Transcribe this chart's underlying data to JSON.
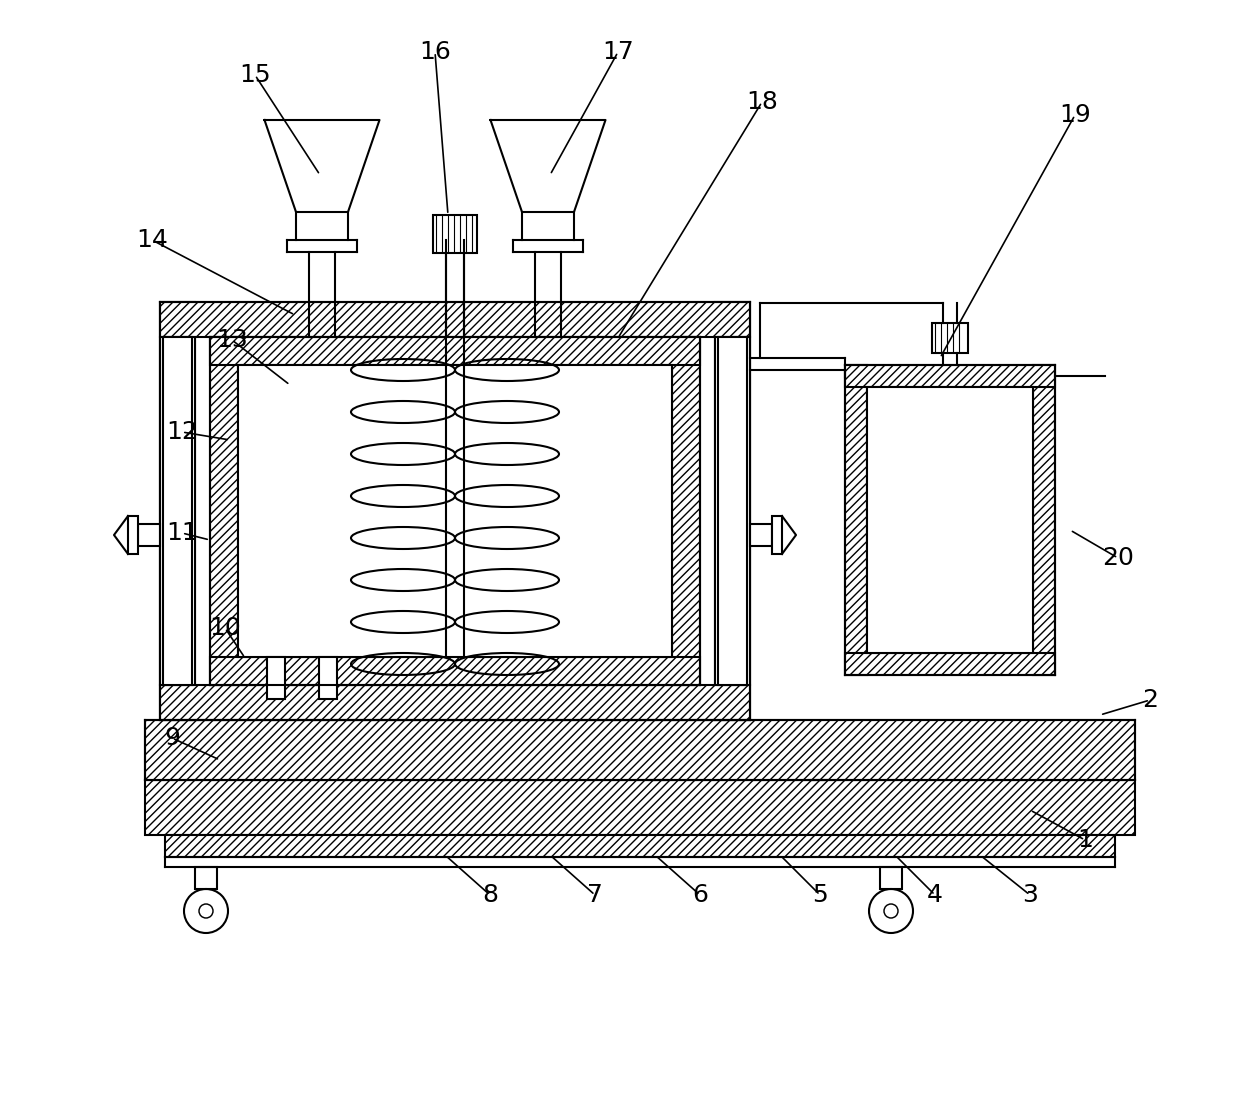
{
  "bg": "#ffffff",
  "lc": "#000000",
  "lw": 1.5,
  "label_fs": 18,
  "annotations": [
    [
      1,
      1085,
      840,
      1030,
      810
    ],
    [
      2,
      1150,
      700,
      1100,
      715
    ],
    [
      3,
      1030,
      895,
      980,
      855
    ],
    [
      4,
      935,
      895,
      895,
      855
    ],
    [
      5,
      820,
      895,
      780,
      855
    ],
    [
      6,
      700,
      895,
      655,
      855
    ],
    [
      7,
      595,
      895,
      550,
      855
    ],
    [
      8,
      490,
      895,
      445,
      855
    ],
    [
      9,
      172,
      738,
      220,
      760
    ],
    [
      10,
      225,
      628,
      245,
      658
    ],
    [
      11,
      182,
      533,
      210,
      540
    ],
    [
      12,
      182,
      432,
      230,
      440
    ],
    [
      13,
      232,
      340,
      290,
      385
    ],
    [
      14,
      152,
      240,
      295,
      315
    ],
    [
      15,
      255,
      75,
      320,
      175
    ],
    [
      16,
      435,
      52,
      448,
      215
    ],
    [
      17,
      618,
      52,
      550,
      175
    ],
    [
      18,
      762,
      102,
      618,
      338
    ],
    [
      19,
      1075,
      115,
      940,
      358
    ],
    [
      20,
      1118,
      558,
      1070,
      530
    ]
  ]
}
